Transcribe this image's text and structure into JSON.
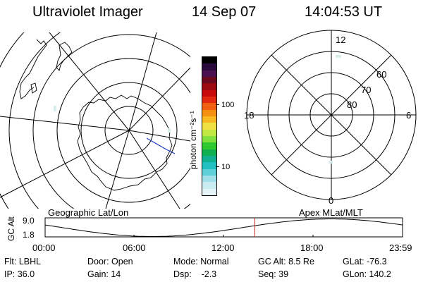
{
  "header": {
    "title": "Ultraviolet Imager",
    "date": "14 Sep 07",
    "time": "14:04:53 UT"
  },
  "panels": {
    "left_label": "Geographic Lat/Lon",
    "right_label": "Apex MLat/MLT"
  },
  "polar_labels": {
    "top": "12",
    "bottom": "0",
    "left": "18",
    "right": "6",
    "lat_60": "60",
    "lat_70": "70",
    "lat_80": "80"
  },
  "colorbar": {
    "ticks": [
      "100",
      "10"
    ],
    "unit_label": "photon cm⁻²s⁻¹",
    "colors": [
      "#000000",
      "#2a0a3a",
      "#4a1050",
      "#6a0a20",
      "#9a0a10",
      "#c80a0a",
      "#e02810",
      "#f06010",
      "#f59010",
      "#f8b820",
      "#f0e040",
      "#c0e840",
      "#80e040",
      "#30c830",
      "#10b050",
      "#10b090",
      "#20c0c0",
      "#60d0d8",
      "#a0e0e8",
      "#c8ecf0",
      "#e4f4f6"
    ]
  },
  "altitude_plot": {
    "ylabel": "GC Alt",
    "y_ticks": [
      "9.0",
      "1.8"
    ],
    "x_ticks": [
      "00:00",
      "06:00",
      "12:00",
      "18:00",
      "23:59"
    ],
    "marker_hour": 14.08,
    "line_color": "#000000",
    "marker_color": "#d02020"
  },
  "status": {
    "flt": "Flt: LBHL",
    "door": "Door: Open",
    "mode": "Mode: Normal",
    "gc_alt": "GC Alt: 8.5 Re",
    "glat": "GLat: -76.3",
    "ip": "IP: 36.0",
    "gain": "Gain: 14",
    "dsp": "Dsp:    -2.3",
    "seq": "Seq: 39",
    "glon": "GLon: 140.2"
  },
  "colors": {
    "coast": "#000000",
    "overlay_line": "#1a3ac8"
  }
}
